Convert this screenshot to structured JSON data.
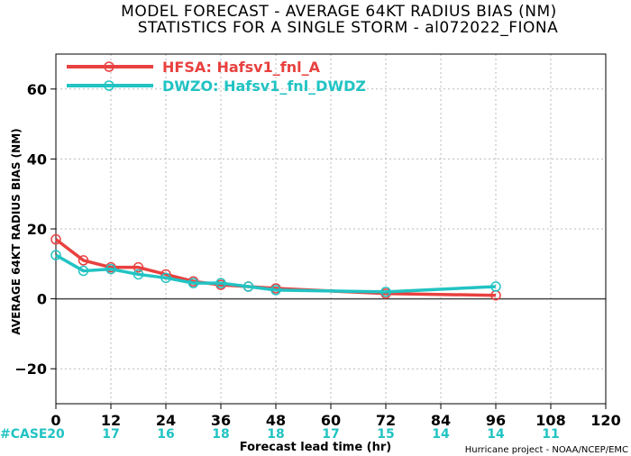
{
  "title_line1": "MODEL FORECAST - AVERAGE 64KT RADIUS BIAS (NM)",
  "title_line2": "STATISTICS FOR A SINGLE STORM - al072022_FIONA",
  "credit": "Hurricane project - NOAA/NCEP/EMC",
  "case_label": "#CASE",
  "colors": {
    "hfsa": "#e8413f",
    "dwzo": "#22c3c3",
    "zero_line": "#444444",
    "grid": "#b8b8b8"
  },
  "chart_data": {
    "type": "line",
    "xlabel": "Forecast lead time (hr)",
    "ylabel": "AVERAGE 64KT RADIUS BIAS (NM)",
    "xlim": [
      0,
      120
    ],
    "ylim": [
      -30,
      70
    ],
    "xticks": [
      0,
      12,
      24,
      36,
      48,
      60,
      72,
      84,
      96,
      108,
      120
    ],
    "yticks": [
      -20,
      0,
      20,
      40,
      60
    ],
    "grid": true,
    "legend_position": "top-left",
    "series": [
      {
        "name": "HFSA: Hafsv1_fnl_A",
        "color": "#e8413f",
        "x": [
          0,
          6,
          12,
          18,
          24,
          30,
          36,
          42,
          48,
          72,
          96
        ],
        "y": [
          17,
          11,
          9,
          9,
          7,
          5,
          4,
          3.5,
          3,
          1.5,
          1
        ]
      },
      {
        "name": "DWZO: Hafsv1_fnl_DWDZ",
        "color": "#22c3c3",
        "x": [
          0,
          6,
          12,
          18,
          24,
          30,
          36,
          42,
          48,
          72,
          96
        ],
        "y": [
          12.5,
          8,
          8.5,
          7,
          6,
          4.5,
          4.5,
          3.5,
          2.5,
          2,
          3.5
        ]
      }
    ],
    "case_counts": [
      {
        "x": 0,
        "label": "20"
      },
      {
        "x": 12,
        "label": "17"
      },
      {
        "x": 24,
        "label": "16"
      },
      {
        "x": 36,
        "label": "18"
      },
      {
        "x": 48,
        "label": "18"
      },
      {
        "x": 60,
        "label": "17"
      },
      {
        "x": 72,
        "label": "15"
      },
      {
        "x": 84,
        "label": "14"
      },
      {
        "x": 96,
        "label": "14"
      },
      {
        "x": 108,
        "label": "11"
      }
    ]
  }
}
